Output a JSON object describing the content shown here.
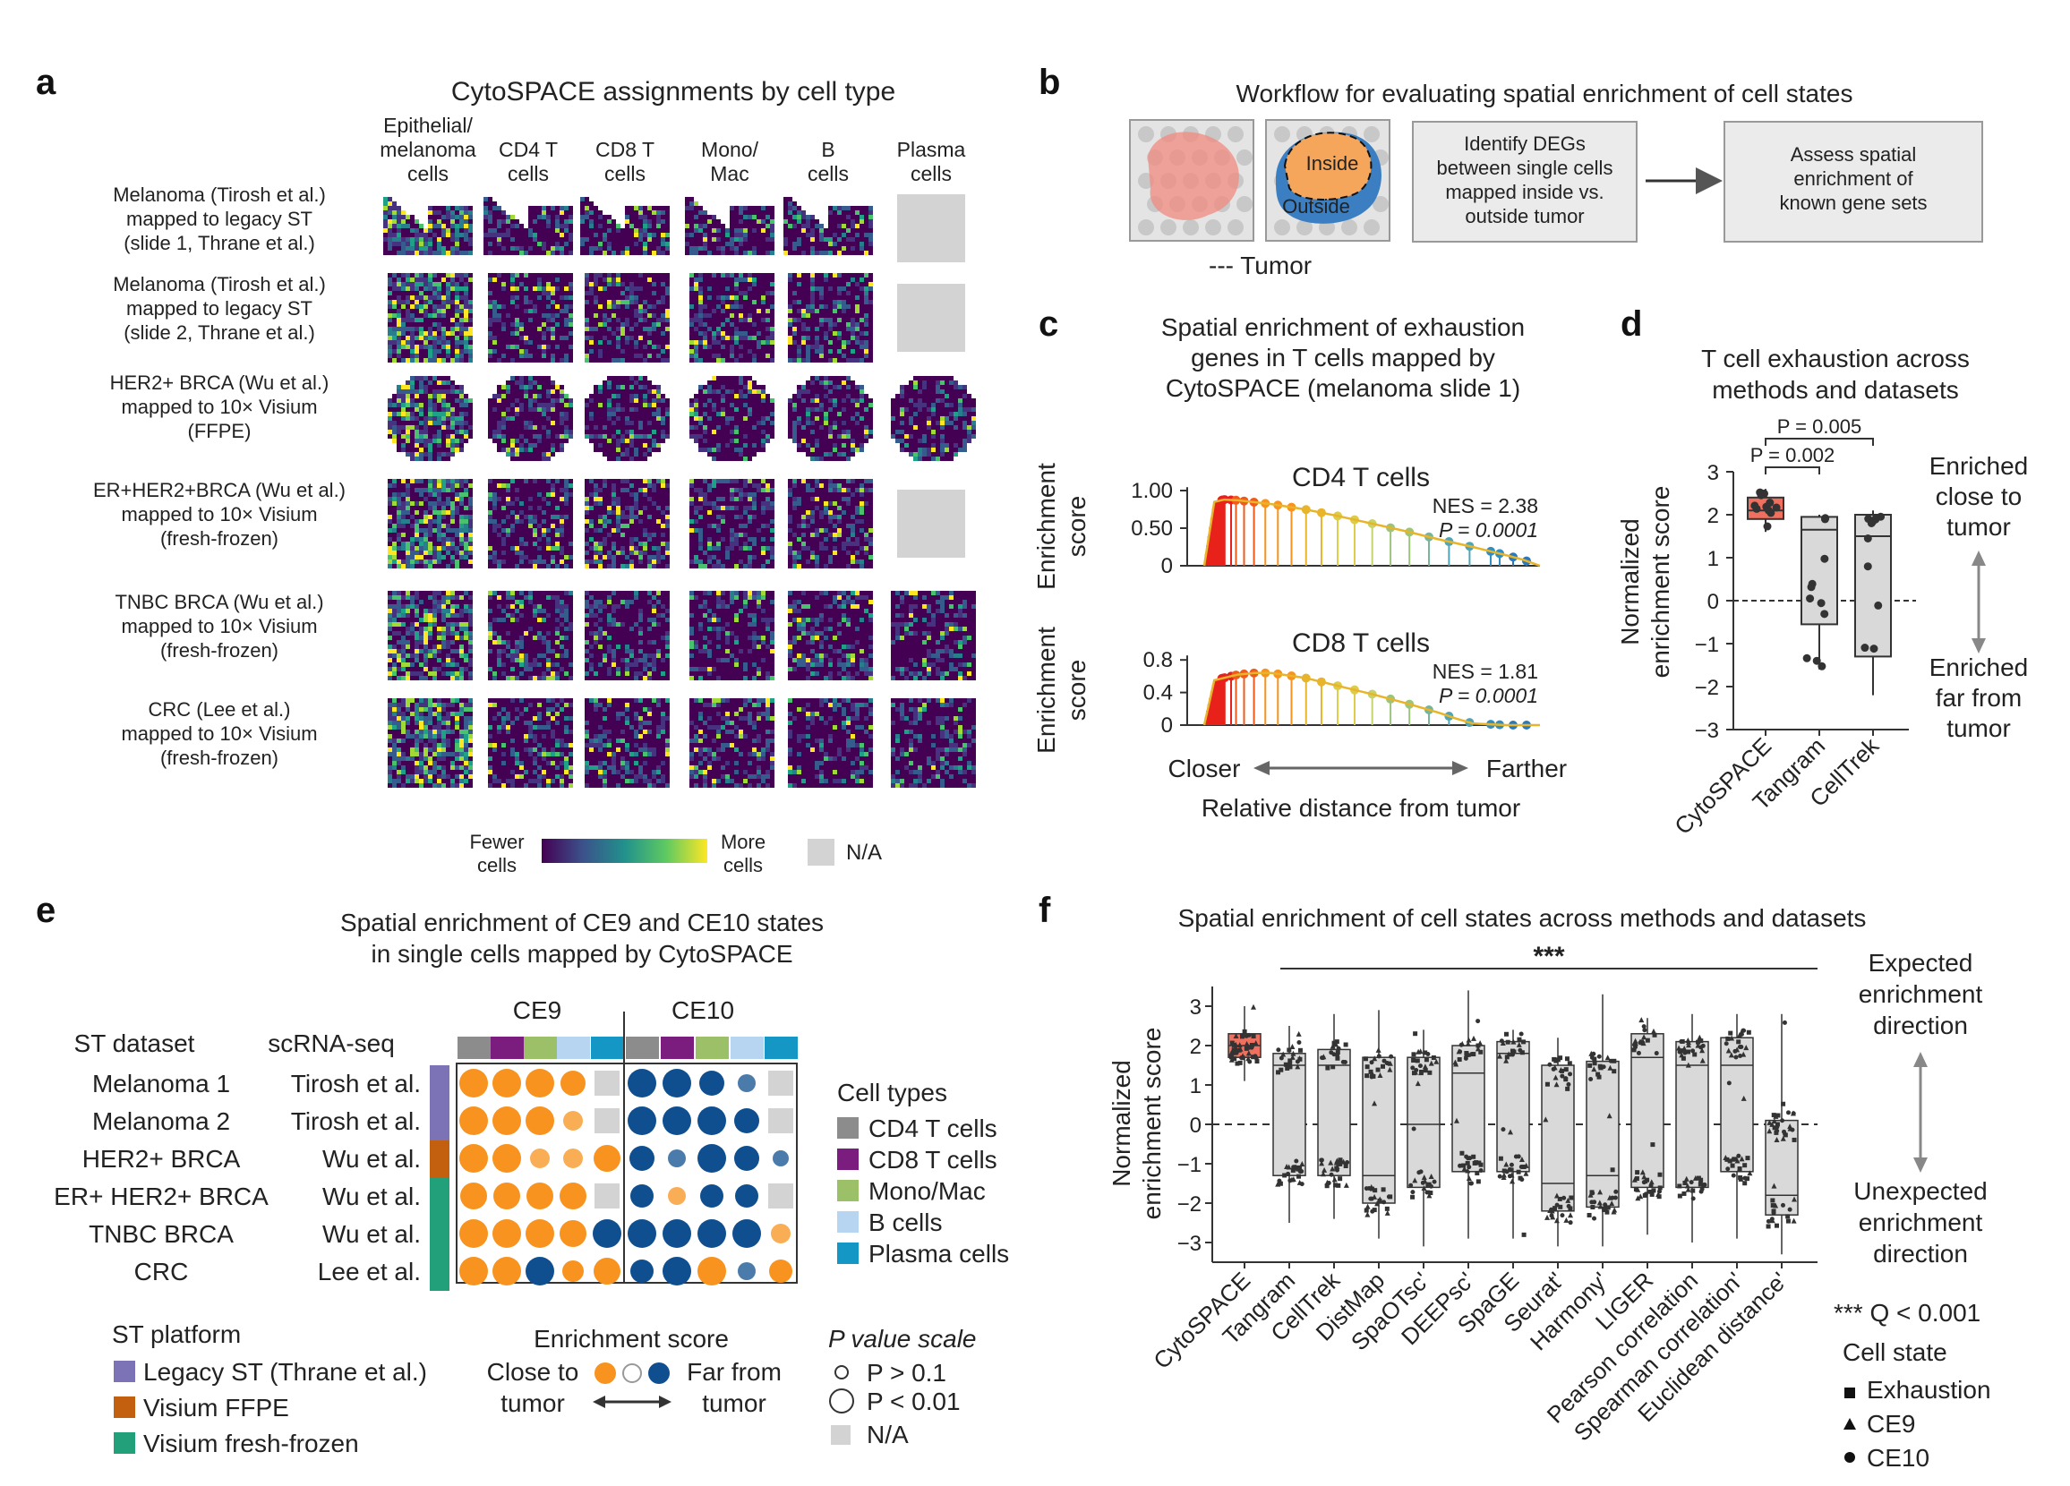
{
  "panel_letters": {
    "a": "a",
    "b": "b",
    "c": "c",
    "d": "d",
    "e": "e",
    "f": "f"
  },
  "colors": {
    "viridis_dark": "#440154",
    "viridis_mid": "#21918c",
    "viridis_light": "#5ec962",
    "viridis_yellow": "#fde725",
    "na_gray": "#d3d3d3",
    "orange": "#f7931e",
    "blue": "#0f4f8f",
    "box_fill": "#d9d9d9",
    "cytospace_red": "#f07060",
    "legacy_st": "#7b73b6",
    "visium_ffpe": "#c3600f",
    "visium_ff": "#22a07a",
    "cd4": "#8c8c8c",
    "cd8": "#7a1d7e",
    "mono": "#9cc068",
    "bcell": "#b7d4f0",
    "plasma": "#1497c5"
  },
  "panel_a": {
    "title": "CytoSPACE assignments by cell type",
    "columns": [
      [
        "Epithelial/",
        "melanoma",
        "cells"
      ],
      [
        "CD4 T",
        "cells"
      ],
      [
        "CD8 T",
        "cells"
      ],
      [
        "Mono/",
        "Mac"
      ],
      [
        "B",
        "cells"
      ],
      [
        "Plasma",
        "cells"
      ]
    ],
    "rows": [
      [
        "Melanoma (Tirosh et al.)",
        "mapped to legacy ST",
        "(slide 1, Thrane et al.)"
      ],
      [
        "Melanoma (Tirosh et al.)",
        "mapped to legacy ST",
        "(slide 2, Thrane et al.)"
      ],
      [
        "HER2+ BRCA (Wu et al.)",
        "mapped to 10× Visium",
        "(FFPE)"
      ],
      [
        "ER+HER2+BRCA (Wu et al.)",
        "mapped to 10× Visium",
        "(fresh-frozen)"
      ],
      [
        "TNBC BRCA (Wu et al.)",
        "mapped to 10× Visium",
        "(fresh-frozen)"
      ],
      [
        "CRC (Lee et al.)",
        "mapped to 10× Visium",
        "(fresh-frozen)"
      ]
    ],
    "na_cells": [
      [
        0,
        5
      ],
      [
        1,
        5
      ],
      [
        3,
        5
      ]
    ],
    "legend": {
      "fewer": [
        "Fewer",
        "cells"
      ],
      "more": [
        "More",
        "cells"
      ],
      "na": "N/A"
    }
  },
  "panel_b": {
    "title": "Workflow for evaluating spatial enrichment of cell states",
    "inside": "Inside",
    "outside": "Outside",
    "box1": [
      "Identify DEGs",
      "between single cells",
      "mapped inside vs.",
      "outside tumor"
    ],
    "box2": [
      "Assess spatial",
      "enrichment of",
      "known gene sets"
    ],
    "tumor_legend": "--- Tumor"
  },
  "panel_c": {
    "title": [
      "Spatial enrichment of exhaustion",
      "genes in T cells mapped by",
      "CytoSPACE (melanoma slide 1)"
    ],
    "ylabel": [
      "Enrichment",
      "score"
    ],
    "plots": [
      {
        "name": "CD4 T cells",
        "nes": "NES = 2.38",
        "p": "P = 0.0001",
        "ticks": [
          "1.00",
          "0.50",
          "0"
        ],
        "tick_vals": [
          1.0,
          0.5,
          0
        ],
        "ymax": 1.1
      },
      {
        "name": "CD8 T cells",
        "nes": "NES = 1.81",
        "p": "P = 0.0001",
        "ticks": [
          "0.8",
          "0.4",
          "0"
        ],
        "tick_vals": [
          0.8,
          0.4,
          0
        ],
        "ymax": 0.9
      }
    ],
    "closer": "Closer",
    "farther": "Farther",
    "xlabel": "Relative distance from tumor"
  },
  "panel_d": {
    "title": [
      "T cell exhaustion across",
      "methods and datasets"
    ],
    "ylabel": [
      "Normalized",
      "enrichment score"
    ],
    "yticks": [
      "3",
      "2",
      "1",
      "0",
      "−1",
      "−2",
      "−3"
    ],
    "ytick_vals": [
      3,
      2,
      1,
      0,
      -1,
      -2,
      -3
    ],
    "categories": [
      "CytoSPACE",
      "Tangram",
      "CellTrek"
    ],
    "p1": "P = 0.002",
    "p2": "P = 0.005",
    "enriched_close": [
      "Enriched",
      "close to",
      "tumor"
    ],
    "enriched_far": [
      "Enriched",
      "far from",
      "tumor"
    ]
  },
  "panel_e": {
    "title": [
      "Spatial enrichment of CE9 and CE10 states",
      "in single cells mapped by CytoSPACE"
    ],
    "ce9": "CE9",
    "ce10": "CE10",
    "st_header": "ST dataset",
    "sc_header": "scRNA-seq",
    "rows": [
      {
        "st": "Melanoma 1",
        "sc": "Tirosh et al."
      },
      {
        "st": "Melanoma 2",
        "sc": "Tirosh et al."
      },
      {
        "st": "HER2+ BRCA",
        "sc": "Wu et al."
      },
      {
        "st": "ER+ HER2+ BRCA",
        "sc": "Wu et al."
      },
      {
        "st": "TNBC BRCA",
        "sc": "Wu et al."
      },
      {
        "st": "CRC",
        "sc": "Lee et al."
      }
    ],
    "cell_types_title": "Cell types",
    "cell_types": [
      "CD4 T cells",
      "CD8 T cells",
      "Mono/Mac",
      "B cells",
      "Plasma cells"
    ],
    "platform_title": "ST platform",
    "platforms": [
      "Legacy ST (Thrane et al.)",
      "Visium FFPE",
      "Visium fresh-frozen"
    ],
    "enrichment_title": "Enrichment score",
    "close": [
      "Close to",
      "tumor"
    ],
    "far": [
      "Far from",
      "tumor"
    ],
    "pscale_title": "P value scale",
    "p_big": "P > 0.1",
    "p_small": "P < 0.01",
    "na": "N/A"
  },
  "panel_f": {
    "title": "Spatial enrichment of cell states across methods and datasets",
    "significance": "***",
    "ylabel": [
      "Normalized",
      "enrichment score"
    ],
    "yticks": [
      "3",
      "2",
      "1",
      "0",
      "−1",
      "−2",
      "−3"
    ],
    "ytick_vals": [
      3,
      2,
      1,
      0,
      -1,
      -2,
      -3
    ],
    "categories": [
      "CytoSPACE",
      "Tangram",
      "CellTrek",
      "DistMap",
      "SpaOTsc'",
      "DEEPsc'",
      "SpaGE",
      "Seurat'",
      "Harmony'",
      "LIGER",
      "Pearson correlation",
      "Spearman correlation'",
      "Euclidean distance'"
    ],
    "expected": [
      "Expected",
      "enrichment",
      "direction"
    ],
    "unexpected": [
      "Unexpected",
      "enrichment",
      "direction"
    ],
    "qnote": "*** Q < 0.001",
    "state_title": "Cell state",
    "states": [
      "Exhaustion",
      "CE9",
      "CE10"
    ]
  },
  "chart_data": [
    {
      "type": "line",
      "title": "CD4 T cells",
      "ylabel": "Enrichment score",
      "xlabel": "Relative distance from tumor",
      "ylim": [
        0,
        1.1
      ],
      "series": [
        {
          "name": "CD4 T cells",
          "x": [
            0,
            0.03,
            0.06,
            0.1,
            0.2,
            0.3,
            0.4,
            0.5,
            0.6,
            0.7,
            0.8,
            0.9,
            0.95,
            1.0
          ],
          "values": [
            0,
            0.85,
            0.88,
            0.87,
            0.82,
            0.75,
            0.66,
            0.56,
            0.46,
            0.35,
            0.25,
            0.14,
            0.08,
            0
          ]
        }
      ]
    },
    {
      "type": "line",
      "title": "CD8 T cells",
      "ylabel": "Enrichment score",
      "xlabel": "Relative distance from tumor",
      "ylim": [
        0,
        0.9
      ],
      "series": [
        {
          "name": "CD8 T cells",
          "x": [
            0,
            0.03,
            0.1,
            0.15,
            0.2,
            0.3,
            0.4,
            0.5,
            0.6,
            0.7,
            0.75,
            0.8,
            0.9,
            1.0
          ],
          "values": [
            0,
            0.55,
            0.62,
            0.64,
            0.64,
            0.58,
            0.48,
            0.38,
            0.27,
            0.15,
            0.08,
            0.02,
            0,
            0
          ]
        }
      ]
    },
    {
      "type": "bar",
      "title": "T cell exhaustion across methods and datasets",
      "ylabel": "Normalized enrichment score",
      "categories": [
        "CytoSPACE",
        "Tangram",
        "CellTrek"
      ],
      "ylim": [
        -3,
        3
      ],
      "boxes": [
        {
          "q1": 1.9,
          "median": 2.1,
          "q3": 2.4,
          "lo": 1.6,
          "hi": 2.6
        },
        {
          "q1": -0.55,
          "median": 1.65,
          "q3": 1.95,
          "lo": -1.6,
          "hi": 2.0
        },
        {
          "q1": -1.3,
          "median": 1.5,
          "q3": 2.0,
          "lo": -2.2,
          "hi": 2.1
        }
      ]
    },
    {
      "type": "bar",
      "title": "Spatial enrichment of cell states across methods and datasets",
      "ylabel": "Normalized enrichment score",
      "categories": [
        "CytoSPACE",
        "Tangram",
        "CellTrek",
        "DistMap",
        "SpaOTsc'",
        "DEEPsc'",
        "SpaGE",
        "Seurat'",
        "Harmony'",
        "LIGER",
        "Pearson correlation",
        "Spearman correlation'",
        "Euclidean distance'"
      ],
      "ylim": [
        -3,
        3
      ],
      "boxes": [
        {
          "q1": 1.7,
          "median": 2.0,
          "q3": 2.3,
          "lo": 1.1,
          "hi": 3.0
        },
        {
          "q1": -1.3,
          "median": 1.5,
          "q3": 1.8,
          "lo": -2.5,
          "hi": 2.5
        },
        {
          "q1": -1.3,
          "median": 1.5,
          "q3": 1.9,
          "lo": -2.4,
          "hi": 2.8
        },
        {
          "q1": -2.0,
          "median": -1.3,
          "q3": 1.7,
          "lo": -2.9,
          "hi": 2.9
        },
        {
          "q1": -1.6,
          "median": 0.0,
          "q3": 1.7,
          "lo": -3.1,
          "hi": 2.4
        },
        {
          "q1": -1.2,
          "median": 1.3,
          "q3": 2.0,
          "lo": -2.9,
          "hi": 3.4
        },
        {
          "q1": -1.2,
          "median": 1.8,
          "q3": 2.1,
          "lo": -2.9,
          "hi": 2.4
        },
        {
          "q1": -2.2,
          "median": -1.5,
          "q3": 1.5,
          "lo": -3.1,
          "hi": 2.2
        },
        {
          "q1": -2.1,
          "median": -1.3,
          "q3": 1.6,
          "lo": -3.1,
          "hi": 3.3
        },
        {
          "q1": -1.6,
          "median": 1.7,
          "q3": 2.3,
          "lo": -2.8,
          "hi": 2.7
        },
        {
          "q1": -1.6,
          "median": 1.5,
          "q3": 2.1,
          "lo": -3.0,
          "hi": 2.8
        },
        {
          "q1": -1.2,
          "median": 1.5,
          "q3": 2.2,
          "lo": -2.9,
          "hi": 2.8
        },
        {
          "q1": -2.3,
          "median": -1.8,
          "q3": 0.1,
          "lo": -3.3,
          "hi": 2.8
        }
      ]
    }
  ]
}
